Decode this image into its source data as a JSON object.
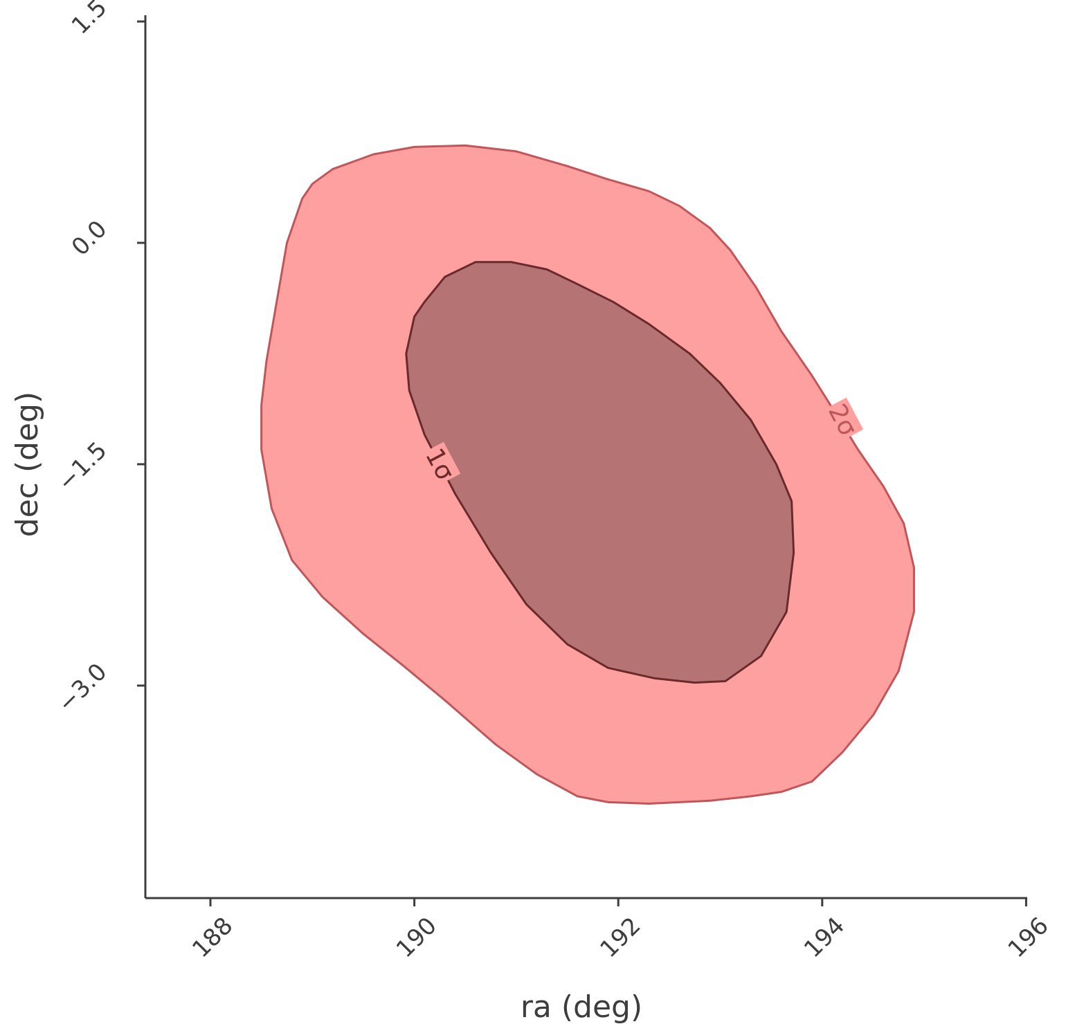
{
  "chart_data": {
    "type": "contour",
    "xlabel": "ra (deg)",
    "ylabel": "dec (deg)",
    "xlim": [
      187.35,
      196.0
    ],
    "ylim": [
      -4.5,
      1.55
    ],
    "xticks": [
      188,
      190,
      192,
      194,
      196
    ],
    "yticks": [
      -3.0,
      -1.5,
      0.0,
      1.5
    ],
    "xtick_labels": [
      "188",
      "190",
      "192",
      "194",
      "196"
    ],
    "ytick_labels": [
      "−3.0",
      "−1.5",
      "0.0",
      "1.5"
    ],
    "colors": {
      "outer_fill": "#ffa0a0",
      "outer_edge": "#c0555a",
      "inner_fill": "#b57473",
      "inner_edge": "#6a2a2c",
      "axis": "#3d3d3d"
    },
    "contours": [
      {
        "level": "2σ",
        "label_position": {
          "ra": 194.2,
          "dec": -1.2
        },
        "label_angle": 62,
        "path": [
          [
            189.0,
            0.4
          ],
          [
            189.2,
            0.5
          ],
          [
            189.6,
            0.6
          ],
          [
            190.0,
            0.65
          ],
          [
            190.5,
            0.66
          ],
          [
            191.0,
            0.62
          ],
          [
            191.5,
            0.52
          ],
          [
            191.9,
            0.43
          ],
          [
            192.3,
            0.35
          ],
          [
            192.6,
            0.25
          ],
          [
            192.9,
            0.1
          ],
          [
            193.1,
            -0.05
          ],
          [
            193.35,
            -0.3
          ],
          [
            193.6,
            -0.6
          ],
          [
            193.9,
            -0.9
          ],
          [
            194.1,
            -1.12
          ],
          [
            194.35,
            -1.4
          ],
          [
            194.6,
            -1.65
          ],
          [
            194.8,
            -1.9
          ],
          [
            194.9,
            -2.2
          ],
          [
            194.9,
            -2.5
          ],
          [
            194.75,
            -2.9
          ],
          [
            194.5,
            -3.2
          ],
          [
            194.2,
            -3.45
          ],
          [
            193.9,
            -3.65
          ],
          [
            193.6,
            -3.72
          ],
          [
            193.3,
            -3.75
          ],
          [
            192.9,
            -3.78
          ],
          [
            192.6,
            -3.79
          ],
          [
            192.3,
            -3.8
          ],
          [
            191.9,
            -3.79
          ],
          [
            191.6,
            -3.75
          ],
          [
            191.2,
            -3.6
          ],
          [
            190.8,
            -3.4
          ],
          [
            190.3,
            -3.1
          ],
          [
            189.9,
            -2.87
          ],
          [
            189.5,
            -2.65
          ],
          [
            189.1,
            -2.4
          ],
          [
            188.8,
            -2.15
          ],
          [
            188.6,
            -1.8
          ],
          [
            188.5,
            -1.4
          ],
          [
            188.5,
            -1.1
          ],
          [
            188.55,
            -0.8
          ],
          [
            188.65,
            -0.4
          ],
          [
            188.75,
            0.0
          ],
          [
            188.9,
            0.3
          ],
          [
            189.0,
            0.4
          ]
        ]
      },
      {
        "level": "1σ",
        "label_position": {
          "ra": 190.25,
          "dec": -1.5
        },
        "label_angle": 62,
        "path": [
          [
            190.1,
            -0.4
          ],
          [
            190.3,
            -0.23
          ],
          [
            190.6,
            -0.13
          ],
          [
            190.95,
            -0.13
          ],
          [
            191.3,
            -0.18
          ],
          [
            191.6,
            -0.28
          ],
          [
            191.95,
            -0.4
          ],
          [
            192.3,
            -0.55
          ],
          [
            192.7,
            -0.75
          ],
          [
            193.0,
            -0.95
          ],
          [
            193.3,
            -1.2
          ],
          [
            193.55,
            -1.5
          ],
          [
            193.7,
            -1.75
          ],
          [
            193.72,
            -2.1
          ],
          [
            193.65,
            -2.5
          ],
          [
            193.4,
            -2.8
          ],
          [
            193.05,
            -2.97
          ],
          [
            192.75,
            -2.98
          ],
          [
            192.35,
            -2.95
          ],
          [
            191.9,
            -2.88
          ],
          [
            191.5,
            -2.72
          ],
          [
            191.1,
            -2.45
          ],
          [
            190.75,
            -2.1
          ],
          [
            190.4,
            -1.7
          ],
          [
            190.1,
            -1.3
          ],
          [
            189.95,
            -1.0
          ],
          [
            189.92,
            -0.75
          ],
          [
            190.0,
            -0.5
          ],
          [
            190.1,
            -0.4
          ]
        ]
      }
    ]
  }
}
